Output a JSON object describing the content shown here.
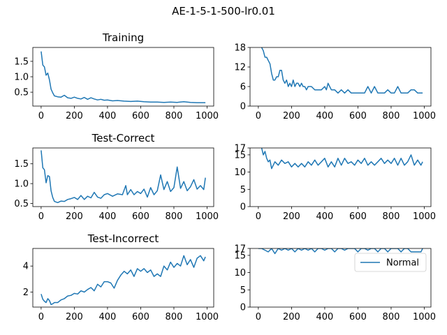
{
  "figure": {
    "title": "AE-1-5-1-500-lr0.01",
    "line_color": "#1f77b4"
  },
  "chart_data": [
    {
      "type": "line",
      "title": "Training",
      "xlim": [
        -50,
        1040
      ],
      "ylim": [
        0.05,
        1.95
      ],
      "xticks": [
        0,
        200,
        400,
        600,
        800,
        1000
      ],
      "yticks": [
        0.5,
        1.0,
        1.5
      ],
      "yticklabels": [
        "0.5",
        "1.0",
        "1.5"
      ],
      "series": [
        {
          "x": [
            0,
            10,
            20,
            30,
            40,
            50,
            60,
            70,
            80,
            100,
            120,
            140,
            160,
            180,
            200,
            220,
            240,
            260,
            280,
            300,
            320,
            340,
            360,
            380,
            400,
            430,
            460,
            500,
            540,
            580,
            620,
            660,
            700,
            740,
            780,
            820,
            860,
            900,
            940,
            990
          ],
          "y": [
            1.82,
            1.38,
            1.32,
            1.05,
            1.12,
            0.9,
            0.6,
            0.48,
            0.38,
            0.35,
            0.34,
            0.4,
            0.32,
            0.3,
            0.34,
            0.3,
            0.28,
            0.33,
            0.27,
            0.32,
            0.28,
            0.25,
            0.27,
            0.24,
            0.25,
            0.22,
            0.23,
            0.21,
            0.2,
            0.21,
            0.19,
            0.18,
            0.18,
            0.17,
            0.18,
            0.17,
            0.19,
            0.17,
            0.16,
            0.16
          ]
        }
      ]
    },
    {
      "type": "line",
      "title": "",
      "xlim": [
        -50,
        1040
      ],
      "ylim": [
        0,
        18
      ],
      "xticks": [
        0,
        200,
        400,
        600,
        800,
        1000
      ],
      "yticks": [
        0,
        6,
        12,
        18
      ],
      "yticklabels": [
        "0",
        "6",
        "12",
        "18"
      ],
      "series": [
        {
          "x": [
            20,
            30,
            40,
            50,
            60,
            70,
            80,
            90,
            100,
            110,
            120,
            130,
            140,
            150,
            160,
            170,
            180,
            190,
            200,
            210,
            220,
            230,
            240,
            250,
            260,
            270,
            280,
            290,
            300,
            320,
            340,
            360,
            380,
            400,
            410,
            420,
            440,
            460,
            480,
            500,
            520,
            540,
            560,
            580,
            600,
            640,
            660,
            680,
            700,
            720,
            740,
            760,
            780,
            800,
            820,
            840,
            860,
            880,
            900,
            920,
            940,
            960,
            990
          ],
          "y": [
            18,
            17,
            15,
            15,
            14,
            13,
            10,
            8,
            8,
            9,
            9,
            11,
            11,
            8,
            7,
            8,
            6,
            7,
            6,
            8,
            6,
            7,
            7,
            6,
            7,
            6,
            6,
            5,
            6,
            6,
            5,
            5,
            5,
            6,
            5,
            7,
            5,
            5,
            4,
            5,
            4,
            5,
            4,
            4,
            4,
            4,
            6,
            4,
            6,
            4,
            4,
            4,
            5,
            4,
            4,
            6,
            4,
            4,
            4,
            5,
            5,
            4,
            4
          ]
        }
      ]
    },
    {
      "type": "line",
      "title": "Test-Correct",
      "xlim": [
        -50,
        1040
      ],
      "ylim": [
        0.42,
        1.9
      ],
      "xticks": [
        0,
        200,
        400,
        600,
        800,
        1000
      ],
      "yticks": [
        0.5,
        1.0,
        1.5
      ],
      "yticklabels": [
        "0.5",
        "1.0",
        "1.5"
      ],
      "series": [
        {
          "x": [
            0,
            10,
            20,
            30,
            40,
            50,
            60,
            70,
            80,
            100,
            120,
            140,
            160,
            180,
            200,
            220,
            240,
            260,
            280,
            300,
            320,
            340,
            360,
            380,
            400,
            430,
            460,
            490,
            510,
            520,
            540,
            560,
            580,
            600,
            620,
            640,
            660,
            680,
            700,
            720,
            740,
            760,
            780,
            800,
            820,
            840,
            860,
            880,
            900,
            920,
            940,
            960,
            980,
            990
          ],
          "y": [
            1.84,
            1.4,
            1.35,
            1.02,
            1.2,
            1.18,
            0.82,
            0.65,
            0.55,
            0.52,
            0.56,
            0.55,
            0.6,
            0.62,
            0.65,
            0.6,
            0.7,
            0.6,
            0.68,
            0.64,
            0.78,
            0.66,
            0.63,
            0.72,
            0.75,
            0.68,
            0.74,
            0.72,
            0.95,
            0.72,
            0.85,
            0.72,
            0.8,
            0.75,
            0.86,
            0.66,
            0.9,
            0.72,
            0.82,
            1.22,
            0.85,
            1.05,
            0.8,
            0.9,
            1.42,
            0.88,
            1.05,
            0.82,
            0.92,
            1.1,
            0.86,
            0.95,
            0.85,
            1.15
          ]
        }
      ]
    },
    {
      "type": "line",
      "title": "",
      "xlim": [
        -50,
        1040
      ],
      "ylim": [
        0,
        17
      ],
      "xticks": [
        0,
        200,
        400,
        600,
        800,
        1000
      ],
      "yticks": [
        0,
        5,
        10,
        15,
        17
      ],
      "yticklabels": [
        "0",
        "5",
        "10",
        "15",
        "17"
      ],
      "series": [
        {
          "x": [
            20,
            30,
            40,
            50,
            60,
            70,
            80,
            100,
            120,
            140,
            160,
            180,
            200,
            220,
            240,
            260,
            280,
            300,
            320,
            340,
            360,
            380,
            400,
            420,
            440,
            460,
            480,
            500,
            520,
            540,
            560,
            580,
            600,
            620,
            640,
            660,
            680,
            700,
            720,
            740,
            760,
            780,
            800,
            820,
            840,
            860,
            880,
            900,
            920,
            940,
            960,
            980,
            990
          ],
          "y": [
            17,
            15,
            16,
            14,
            13,
            13.5,
            11,
            13,
            12,
            13.5,
            12.5,
            13,
            11.5,
            12.5,
            11.5,
            12.5,
            11.5,
            13,
            12,
            13.5,
            12,
            13,
            14,
            11.5,
            13,
            11.5,
            14,
            12,
            14,
            12.5,
            13,
            12,
            13.5,
            12.5,
            14,
            12,
            13,
            12,
            13,
            14,
            12.5,
            13.5,
            12.5,
            14,
            12,
            14,
            12,
            13,
            15,
            12,
            13.5,
            12,
            13
          ]
        }
      ]
    },
    {
      "type": "line",
      "title": "Test-Incorrect",
      "xlim": [
        -50,
        1040
      ],
      "ylim": [
        0.85,
        5.35
      ],
      "xticks": [
        0,
        200,
        400,
        600,
        800,
        1000
      ],
      "yticks": [
        2,
        4
      ],
      "yticklabels": [
        "2",
        "4"
      ],
      "series": [
        {
          "x": [
            0,
            10,
            20,
            30,
            40,
            50,
            60,
            70,
            80,
            100,
            120,
            140,
            160,
            180,
            200,
            220,
            240,
            260,
            280,
            300,
            320,
            340,
            360,
            380,
            400,
            420,
            440,
            460,
            480,
            500,
            520,
            540,
            560,
            580,
            600,
            620,
            640,
            660,
            680,
            700,
            720,
            740,
            760,
            780,
            800,
            820,
            840,
            860,
            880,
            900,
            920,
            940,
            960,
            980,
            990
          ],
          "y": [
            1.85,
            1.45,
            1.3,
            1.2,
            1.5,
            1.35,
            1.05,
            1.1,
            1.2,
            1.2,
            1.4,
            1.5,
            1.7,
            1.75,
            1.9,
            1.85,
            2.1,
            2.0,
            2.2,
            2.35,
            2.1,
            2.6,
            2.4,
            2.8,
            2.8,
            2.7,
            2.3,
            2.9,
            3.3,
            3.6,
            3.4,
            3.7,
            3.2,
            3.8,
            3.6,
            3.8,
            3.5,
            3.7,
            3.2,
            3.4,
            3.2,
            4.0,
            3.7,
            4.3,
            3.9,
            4.2,
            4.0,
            4.8,
            4.1,
            4.5,
            3.9,
            4.6,
            4.8,
            4.4,
            4.7
          ]
        }
      ]
    },
    {
      "type": "line",
      "title": "",
      "xlim": [
        -50,
        1040
      ],
      "ylim": [
        0,
        17
      ],
      "xticks": [
        0,
        200,
        400,
        600,
        800,
        1000
      ],
      "yticks": [
        0,
        5,
        10,
        15,
        17
      ],
      "yticklabels": [
        "0",
        "5",
        "10",
        "15",
        "17"
      ],
      "legend": {
        "position": "right",
        "entries": [
          "Normal"
        ]
      },
      "series": [
        {
          "name": "Normal",
          "x": [
            0,
            20,
            40,
            60,
            80,
            100,
            120,
            140,
            160,
            180,
            200,
            220,
            240,
            260,
            280,
            300,
            320,
            340,
            360,
            380,
            400,
            420,
            440,
            460,
            480,
            500,
            520,
            540,
            560,
            580,
            600,
            620,
            640,
            660,
            680,
            700,
            720,
            740,
            760,
            780,
            800,
            820,
            840,
            860,
            880,
            900,
            920,
            940,
            960,
            980,
            990
          ],
          "y": [
            17,
            17,
            16.5,
            16,
            17,
            15.5,
            17,
            16.5,
            17,
            16.5,
            17,
            16,
            17,
            16.5,
            17,
            16.5,
            17,
            16,
            17,
            17,
            16.5,
            17,
            17,
            16,
            17,
            17,
            16.5,
            17,
            17,
            17,
            16,
            17,
            17,
            16.5,
            17,
            17,
            16,
            17,
            17,
            16,
            17,
            17,
            17,
            16,
            17,
            17,
            16,
            16,
            16,
            16,
            17
          ]
        }
      ]
    }
  ]
}
